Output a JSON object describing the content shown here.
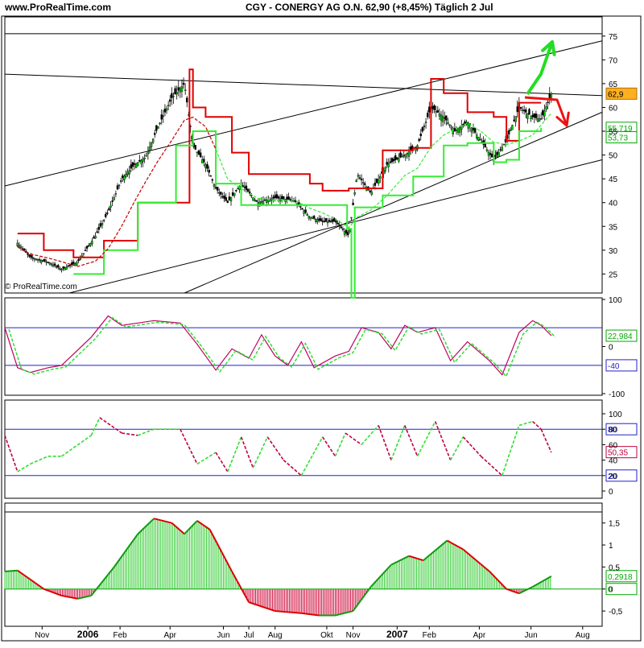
{
  "header": {
    "site": "www.ProRealTime.com",
    "title": "CGY - CONERGY AG O.N.   62,90 (+8,45%)   Täglich  2 Jul",
    "watermark": "© ProRealTime.com"
  },
  "chart_data": [
    {
      "type": "line",
      "panel": "price",
      "ylim": [
        21,
        77
      ],
      "yticks": [
        25,
        30,
        35,
        40,
        45,
        50,
        55,
        60,
        65,
        70,
        75
      ],
      "ytick_labels": [
        "25",
        "30",
        "35",
        "40",
        "45",
        "50",
        "55",
        "60",
        "65",
        "70",
        "75"
      ],
      "x_months": [
        "Nov",
        "2006",
        "Feb",
        "Apr",
        "Jun",
        "Jul",
        "Aug",
        "Okt",
        "Nov",
        "2007",
        "Feb",
        "Apr",
        "Jun",
        "Aug"
      ],
      "price_close": [
        [
          "2005-10-10",
          31.5
        ],
        [
          "2005-10-25",
          28.5
        ],
        [
          "2005-11-15",
          27.5
        ],
        [
          "2005-12-01",
          26.0
        ],
        [
          "2005-12-20",
          27.5
        ],
        [
          "2006-01-10",
          33.0
        ],
        [
          "2006-01-25",
          38.0
        ],
        [
          "2006-02-10",
          45.0
        ],
        [
          "2006-02-25",
          48.0
        ],
        [
          "2006-03-10",
          49.5
        ],
        [
          "2006-03-25",
          56.0
        ],
        [
          "2006-04-10",
          62.0
        ],
        [
          "2006-04-25",
          65.0
        ],
        [
          "2006-05-05",
          52.0
        ],
        [
          "2006-05-20",
          48.0
        ],
        [
          "2006-06-01",
          43.0
        ],
        [
          "2006-06-15",
          40.0
        ],
        [
          "2006-07-01",
          44.0
        ],
        [
          "2006-07-20",
          40.0
        ],
        [
          "2006-08-10",
          41.0
        ],
        [
          "2006-09-01",
          40.5
        ],
        [
          "2006-09-20",
          37.0
        ],
        [
          "2006-10-05",
          36.0
        ],
        [
          "2006-10-20",
          36.0
        ],
        [
          "2006-11-05",
          33.0
        ],
        [
          "2006-11-15",
          46.0
        ],
        [
          "2006-12-01",
          42.0
        ],
        [
          "2006-12-20",
          48.0
        ],
        [
          "2007-01-10",
          50.0
        ],
        [
          "2007-01-25",
          52.0
        ],
        [
          "2007-02-10",
          60.0
        ],
        [
          "2007-02-25",
          58.0
        ],
        [
          "2007-03-10",
          55.0
        ],
        [
          "2007-03-25",
          57.0
        ],
        [
          "2007-04-10",
          53.0
        ],
        [
          "2007-04-25",
          49.0
        ],
        [
          "2007-05-10",
          53.0
        ],
        [
          "2007-05-25",
          60.0
        ],
        [
          "2007-06-10",
          58.0
        ],
        [
          "2007-06-20",
          57.5
        ],
        [
          "2007-07-02",
          62.9
        ]
      ],
      "red_stop": [
        [
          "2005-10-10",
          33.5
        ],
        [
          "2005-11-10",
          30.0
        ],
        [
          "2005-12-15",
          28.5
        ],
        [
          "2006-01-05",
          28.5
        ],
        [
          "2006-01-20",
          32.0
        ],
        [
          "2006-03-01",
          40.0
        ],
        [
          "2006-05-01",
          68.0
        ],
        [
          "2006-05-05",
          60.0
        ],
        [
          "2006-05-20",
          58.0
        ],
        [
          "2006-06-20",
          50.5
        ],
        [
          "2006-07-10",
          46.0
        ],
        [
          "2006-09-20",
          44.0
        ],
        [
          "2006-10-05",
          42.5
        ],
        [
          "2006-11-05",
          43.0
        ],
        [
          "2006-12-15",
          51.0
        ],
        [
          "2007-01-20",
          51.5
        ],
        [
          "2007-02-10",
          66.0
        ],
        [
          "2007-02-25",
          63.0
        ],
        [
          "2007-03-25",
          59.0
        ],
        [
          "2007-04-25",
          58.0
        ],
        [
          "2007-05-10",
          53.0
        ],
        [
          "2007-05-25",
          61.0
        ],
        [
          "2007-06-20",
          61.0
        ]
      ],
      "green_stop": [
        [
          "2005-12-15",
          25.0
        ],
        [
          "2006-01-20",
          30.0
        ],
        [
          "2006-03-01",
          40.0
        ],
        [
          "2006-04-15",
          52.0
        ],
        [
          "2006-05-05",
          55.0
        ],
        [
          "2006-06-01",
          44.0
        ],
        [
          "2006-07-01",
          39.5
        ],
        [
          "2006-09-25",
          39.5
        ],
        [
          "2006-11-03",
          34.5
        ],
        [
          "2006-11-08",
          20.0
        ],
        [
          "2006-11-12",
          39.0
        ],
        [
          "2006-12-15",
          41.5
        ],
        [
          "2007-01-20",
          45.5
        ],
        [
          "2007-02-25",
          52.0
        ],
        [
          "2007-03-25",
          52.5
        ],
        [
          "2007-04-25",
          48.5
        ],
        [
          "2007-05-10",
          49.0
        ],
        [
          "2007-05-25",
          55.0
        ],
        [
          "2007-06-20",
          55.7
        ]
      ],
      "last_price_label": "62,9",
      "green_stop_label": "55,719",
      "ma_label": "53,73",
      "trendlines": [
        {
          "from": [
            "2005-09-25",
            67.0
          ],
          "to": [
            "2007-08-31",
            62.5
          ]
        },
        {
          "from": [
            "2005-09-25",
            43.5
          ],
          "to": [
            "2007-08-31",
            74.0
          ]
        },
        {
          "from": [
            "2005-12-10",
            21.0
          ],
          "to": [
            "2007-08-31",
            49.0
          ]
        },
        {
          "from": [
            "2006-04-25",
            21.0
          ],
          "to": [
            "2007-08-31",
            59.0
          ]
        }
      ]
    },
    {
      "type": "line",
      "panel": "stochastic",
      "ylim": [
        -100,
        100
      ],
      "yticks": [
        100,
        0,
        -100
      ],
      "levels": [
        40,
        -40
      ],
      "level_label": "-40",
      "value_label": "22,984",
      "k": [
        [
          "2005-09-25",
          40
        ],
        [
          "2005-10-10",
          -45
        ],
        [
          "2005-10-25",
          -55
        ],
        [
          "2005-11-15",
          -45
        ],
        [
          "2005-12-01",
          -40
        ],
        [
          "2006-01-05",
          20
        ],
        [
          "2006-01-25",
          65
        ],
        [
          "2006-02-10",
          45
        ],
        [
          "2006-03-01",
          50
        ],
        [
          "2006-03-20",
          55
        ],
        [
          "2006-04-20",
          50
        ],
        [
          "2006-05-10",
          5
        ],
        [
          "2006-06-01",
          -50
        ],
        [
          "2006-06-20",
          -5
        ],
        [
          "2006-07-10",
          -25
        ],
        [
          "2006-07-25",
          25
        ],
        [
          "2006-08-10",
          -20
        ],
        [
          "2006-08-25",
          -40
        ],
        [
          "2006-09-10",
          10
        ],
        [
          "2006-09-25",
          -45
        ],
        [
          "2006-10-20",
          -20
        ],
        [
          "2006-11-05",
          -10
        ],
        [
          "2006-11-20",
          40
        ],
        [
          "2006-12-10",
          30
        ],
        [
          "2006-12-25",
          -5
        ],
        [
          "2007-01-10",
          45
        ],
        [
          "2007-01-25",
          30
        ],
        [
          "2007-02-15",
          40
        ],
        [
          "2007-03-05",
          -30
        ],
        [
          "2007-03-25",
          10
        ],
        [
          "2007-04-20",
          -30
        ],
        [
          "2007-05-05",
          -60
        ],
        [
          "2007-05-25",
          30
        ],
        [
          "2007-06-10",
          55
        ],
        [
          "2007-06-20",
          45
        ],
        [
          "2007-07-02",
          23
        ]
      ]
    },
    {
      "type": "line",
      "panel": "rsi",
      "ylim": [
        0,
        100
      ],
      "yticks": [
        0,
        20,
        40,
        60,
        80,
        100
      ],
      "levels": [
        80,
        20
      ],
      "level_labels": [
        "80",
        "20"
      ],
      "value_label": "50,35",
      "series": [
        [
          "2005-09-25",
          72
        ],
        [
          "2005-10-10",
          25
        ],
        [
          "2005-10-25",
          35
        ],
        [
          "2005-11-15",
          45
        ],
        [
          "2005-12-01",
          45
        ],
        [
          "2006-01-05",
          72
        ],
        [
          "2006-01-15",
          95
        ],
        [
          "2006-02-10",
          75
        ],
        [
          "2006-03-01",
          72
        ],
        [
          "2006-03-20",
          80
        ],
        [
          "2006-04-20",
          80
        ],
        [
          "2006-05-10",
          35
        ],
        [
          "2006-06-01",
          50
        ],
        [
          "2006-06-15",
          25
        ],
        [
          "2006-07-01",
          70
        ],
        [
          "2006-07-15",
          30
        ],
        [
          "2006-08-01",
          70
        ],
        [
          "2006-08-20",
          40
        ],
        [
          "2006-09-10",
          20
        ],
        [
          "2006-10-05",
          70
        ],
        [
          "2006-10-20",
          45
        ],
        [
          "2006-11-01",
          75
        ],
        [
          "2006-11-20",
          60
        ],
        [
          "2006-12-10",
          85
        ],
        [
          "2006-12-25",
          40
        ],
        [
          "2007-01-10",
          85
        ],
        [
          "2007-01-25",
          45
        ],
        [
          "2007-02-15",
          90
        ],
        [
          "2007-03-05",
          40
        ],
        [
          "2007-03-20",
          70
        ],
        [
          "2007-04-10",
          45
        ],
        [
          "2007-05-05",
          20
        ],
        [
          "2007-05-25",
          85
        ],
        [
          "2007-06-10",
          90
        ],
        [
          "2007-06-20",
          80
        ],
        [
          "2007-07-02",
          50
        ]
      ]
    },
    {
      "type": "area",
      "panel": "macd",
      "ylim": [
        -0.7,
        1.75
      ],
      "yticks": [
        1.5,
        1,
        0.5,
        0,
        -0.5
      ],
      "ytick_labels": [
        "1,5",
        "1",
        "0,5",
        "0",
        "-0,5"
      ],
      "zero_label": "0",
      "value_label": "0,2918",
      "series": [
        [
          "2005-09-25",
          0.4
        ],
        [
          "2005-10-10",
          0.42
        ],
        [
          "2005-11-10",
          0.0
        ],
        [
          "2005-12-01",
          -0.15
        ],
        [
          "2005-12-20",
          -0.22
        ],
        [
          "2006-01-05",
          -0.15
        ],
        [
          "2006-02-01",
          0.5
        ],
        [
          "2006-03-01",
          1.25
        ],
        [
          "2006-03-20",
          1.6
        ],
        [
          "2006-04-10",
          1.5
        ],
        [
          "2006-04-25",
          1.25
        ],
        [
          "2006-05-10",
          1.55
        ],
        [
          "2006-05-25",
          1.35
        ],
        [
          "2006-06-20",
          0.4
        ],
        [
          "2006-07-10",
          -0.3
        ],
        [
          "2006-08-10",
          -0.5
        ],
        [
          "2006-09-10",
          -0.55
        ],
        [
          "2006-10-01",
          -0.6
        ],
        [
          "2006-10-20",
          -0.6
        ],
        [
          "2006-11-10",
          -0.5
        ],
        [
          "2006-12-01",
          0.05
        ],
        [
          "2006-12-25",
          0.55
        ],
        [
          "2007-01-15",
          0.75
        ],
        [
          "2007-02-01",
          0.65
        ],
        [
          "2007-03-01",
          1.1
        ],
        [
          "2007-03-20",
          0.9
        ],
        [
          "2007-04-20",
          0.4
        ],
        [
          "2007-05-10",
          0.0
        ],
        [
          "2007-05-25",
          -0.1
        ],
        [
          "2007-06-10",
          0.05
        ],
        [
          "2007-07-02",
          0.29
        ]
      ]
    }
  ]
}
